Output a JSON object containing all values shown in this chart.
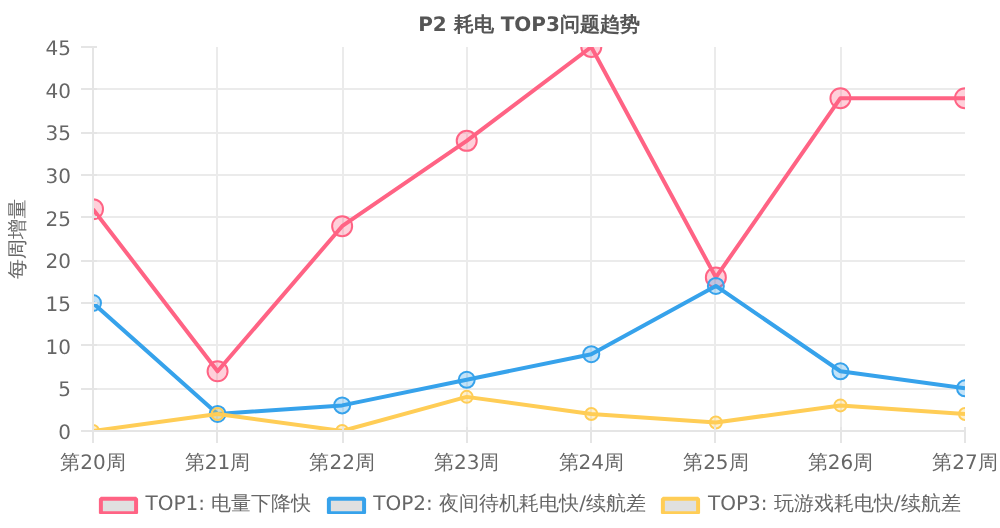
{
  "chart_data": {
    "type": "line",
    "title": "P2 耗电 TOP3问题趋势",
    "ylabel": "每周增量",
    "categories": [
      "第20周",
      "第21周",
      "第22周",
      "第23周",
      "第24周",
      "第25周",
      "第26周",
      "第27周"
    ],
    "series": [
      {
        "name": "TOP1: 电量下降快",
        "color": "#ff6384",
        "values": [
          26,
          7,
          24,
          34,
          45,
          18,
          39,
          39
        ]
      },
      {
        "name": "TOP2: 夜间待机耗电快/续航差",
        "color": "#36a2eb",
        "values": [
          15,
          2,
          3,
          6,
          9,
          17,
          7,
          5
        ]
      },
      {
        "name": "TOP3: 玩游戏耗电快/续航差",
        "color": "#ffcd56",
        "values": [
          0,
          2,
          0,
          4,
          2,
          1,
          3,
          2
        ]
      }
    ],
    "ylim": [
      0,
      45
    ],
    "yticks": [
      0,
      5,
      10,
      15,
      20,
      25,
      30,
      35,
      40,
      45
    ],
    "grid": true,
    "legend": "bottom",
    "marker": "circle",
    "line_style": "solid"
  }
}
